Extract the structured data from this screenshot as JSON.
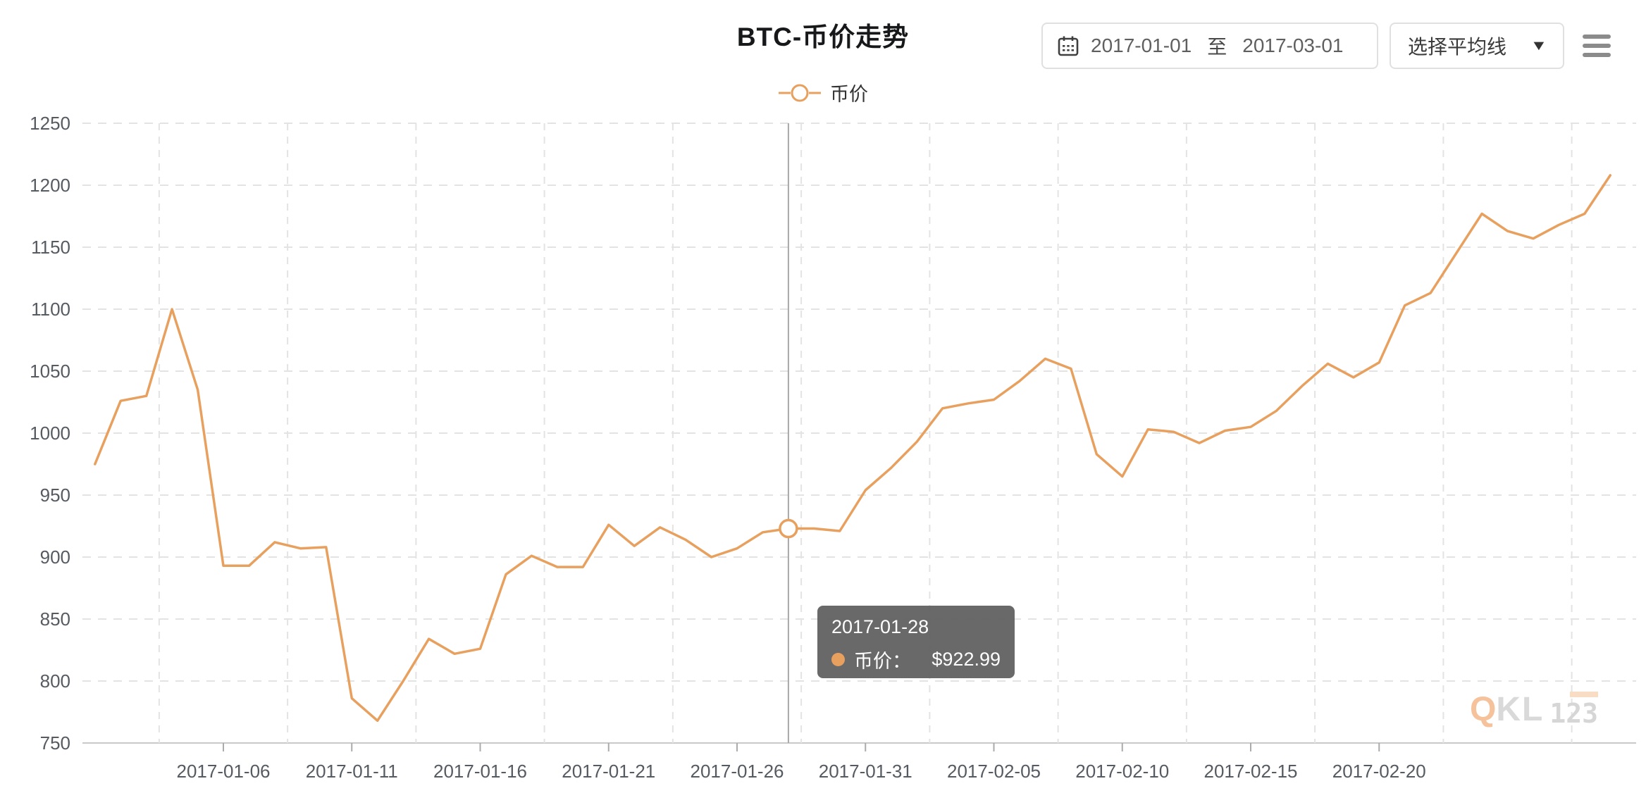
{
  "header": {
    "title": "BTC-币价走势",
    "date_range": {
      "start": "2017-01-01",
      "separator": "至",
      "end": "2017-03-01"
    },
    "ma_select": {
      "label": "选择平均线"
    }
  },
  "legend": {
    "items": [
      {
        "label": "币价",
        "color": "#E8A05F"
      }
    ]
  },
  "tooltip": {
    "date": "2017-01-28",
    "series_label": "币价：",
    "value": "$922.99"
  },
  "watermark": {
    "prefix_q": "Q",
    "prefix_kl": "KL",
    "digits": "123"
  },
  "chart_data": {
    "type": "line",
    "title": "BTC-币价走势",
    "series_name": "币价",
    "line_color": "#E8A05F",
    "grid": true,
    "grid_color": "#E3E3E3",
    "axis_line_color": "#C9C9C9",
    "pointer_color": "#A8A8A8",
    "axis_text_color": "#565B61",
    "ylim": [
      750,
      1250
    ],
    "y_ticks": [
      750,
      800,
      850,
      900,
      950,
      1000,
      1050,
      1100,
      1150,
      1200,
      1250
    ],
    "x_tick_labels": [
      "2017-01-06",
      "2017-01-11",
      "2017-01-16",
      "2017-01-21",
      "2017-01-26",
      "2017-01-31",
      "2017-02-05",
      "2017-02-10",
      "2017-02-15",
      "2017-02-20"
    ],
    "highlight": {
      "date": "2017-01-28",
      "value": 922.99
    },
    "x": [
      "2017-01-01",
      "2017-01-02",
      "2017-01-03",
      "2017-01-04",
      "2017-01-05",
      "2017-01-06",
      "2017-01-07",
      "2017-01-08",
      "2017-01-09",
      "2017-01-10",
      "2017-01-11",
      "2017-01-12",
      "2017-01-13",
      "2017-01-14",
      "2017-01-15",
      "2017-01-16",
      "2017-01-17",
      "2017-01-18",
      "2017-01-19",
      "2017-01-20",
      "2017-01-21",
      "2017-01-22",
      "2017-01-23",
      "2017-01-24",
      "2017-01-25",
      "2017-01-26",
      "2017-01-27",
      "2017-01-28",
      "2017-01-29",
      "2017-01-30",
      "2017-01-31",
      "2017-02-01",
      "2017-02-02",
      "2017-02-03",
      "2017-02-04",
      "2017-02-05",
      "2017-02-06",
      "2017-02-07",
      "2017-02-08",
      "2017-02-09",
      "2017-02-10",
      "2017-02-11",
      "2017-02-12",
      "2017-02-13",
      "2017-02-14",
      "2017-02-15",
      "2017-02-16",
      "2017-02-17",
      "2017-02-18",
      "2017-02-19",
      "2017-02-20",
      "2017-02-21",
      "2017-02-22",
      "2017-02-23",
      "2017-02-24",
      "2017-02-25",
      "2017-02-26",
      "2017-02-27",
      "2017-02-28",
      "2017-03-01"
    ],
    "values": [
      975,
      1026,
      1030,
      1100,
      1035,
      893,
      893,
      912,
      907,
      908,
      786,
      768,
      800,
      834,
      822,
      826,
      886,
      901,
      892,
      892,
      926,
      909,
      924,
      914,
      900,
      907,
      920,
      922.99,
      923,
      921,
      954,
      972,
      993,
      1020,
      1024,
      1027,
      1042,
      1060,
      1052,
      983,
      965,
      1003,
      1001,
      992,
      1002,
      1005,
      1018,
      1038,
      1056,
      1045,
      1057,
      1103,
      1113,
      1145,
      1177,
      1163,
      1157,
      1168,
      1177,
      1208
    ]
  }
}
